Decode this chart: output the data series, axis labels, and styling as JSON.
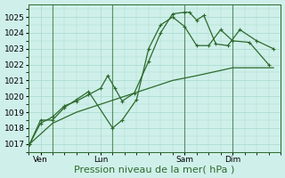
{
  "bg_color": "#cff0ea",
  "grid_color": "#a8d8cc",
  "line_color": "#2d6a2d",
  "ylim": [
    1016.5,
    1025.8
  ],
  "yticks": [
    1017,
    1018,
    1019,
    1020,
    1021,
    1022,
    1023,
    1024,
    1025
  ],
  "xlabel": "Pression niveau de la mer( hPa )",
  "xlabel_fontsize": 8,
  "tick_fontsize": 6.5,
  "day_labels": [
    "Ven",
    "Lun",
    "Sam",
    "Dim"
  ],
  "day_positions": [
    0.5,
    3.0,
    6.5,
    8.5
  ],
  "vline_x": [
    1.0,
    3.5,
    6.5,
    8.5
  ],
  "xlim": [
    0.0,
    10.5
  ],
  "series1_x": [
    0.05,
    0.5,
    1.0,
    1.5,
    2.0,
    2.5,
    3.0,
    3.3,
    3.6,
    3.9,
    4.4,
    5.0,
    5.5,
    6.0,
    6.5,
    6.7,
    7.0,
    7.3,
    7.8,
    8.3,
    8.8,
    9.5,
    10.2
  ],
  "series1_y": [
    1017.0,
    1018.3,
    1018.7,
    1019.4,
    1019.7,
    1020.1,
    1020.5,
    1021.3,
    1020.5,
    1019.7,
    1020.2,
    1022.2,
    1024.0,
    1025.2,
    1025.3,
    1025.3,
    1024.8,
    1025.1,
    1023.3,
    1023.2,
    1024.2,
    1023.5,
    1023.0
  ],
  "series2_x": [
    0.05,
    0.5,
    1.0,
    1.5,
    2.0,
    2.5,
    3.5,
    3.9,
    4.5,
    5.0,
    5.5,
    6.0,
    6.5,
    7.0,
    7.5,
    8.0,
    8.5,
    9.2,
    10.0
  ],
  "series2_y": [
    1017.0,
    1018.5,
    1018.5,
    1019.3,
    1019.8,
    1020.3,
    1018.0,
    1018.5,
    1019.8,
    1023.0,
    1024.5,
    1025.0,
    1024.4,
    1023.2,
    1023.2,
    1024.2,
    1023.5,
    1023.4,
    1022.0
  ],
  "series3_x": [
    0.05,
    1.0,
    2.0,
    3.0,
    4.0,
    5.0,
    6.0,
    7.0,
    8.5,
    10.2
  ],
  "series3_y": [
    1017.0,
    1018.3,
    1019.0,
    1019.5,
    1020.0,
    1020.5,
    1021.0,
    1021.3,
    1021.8,
    1021.8
  ]
}
